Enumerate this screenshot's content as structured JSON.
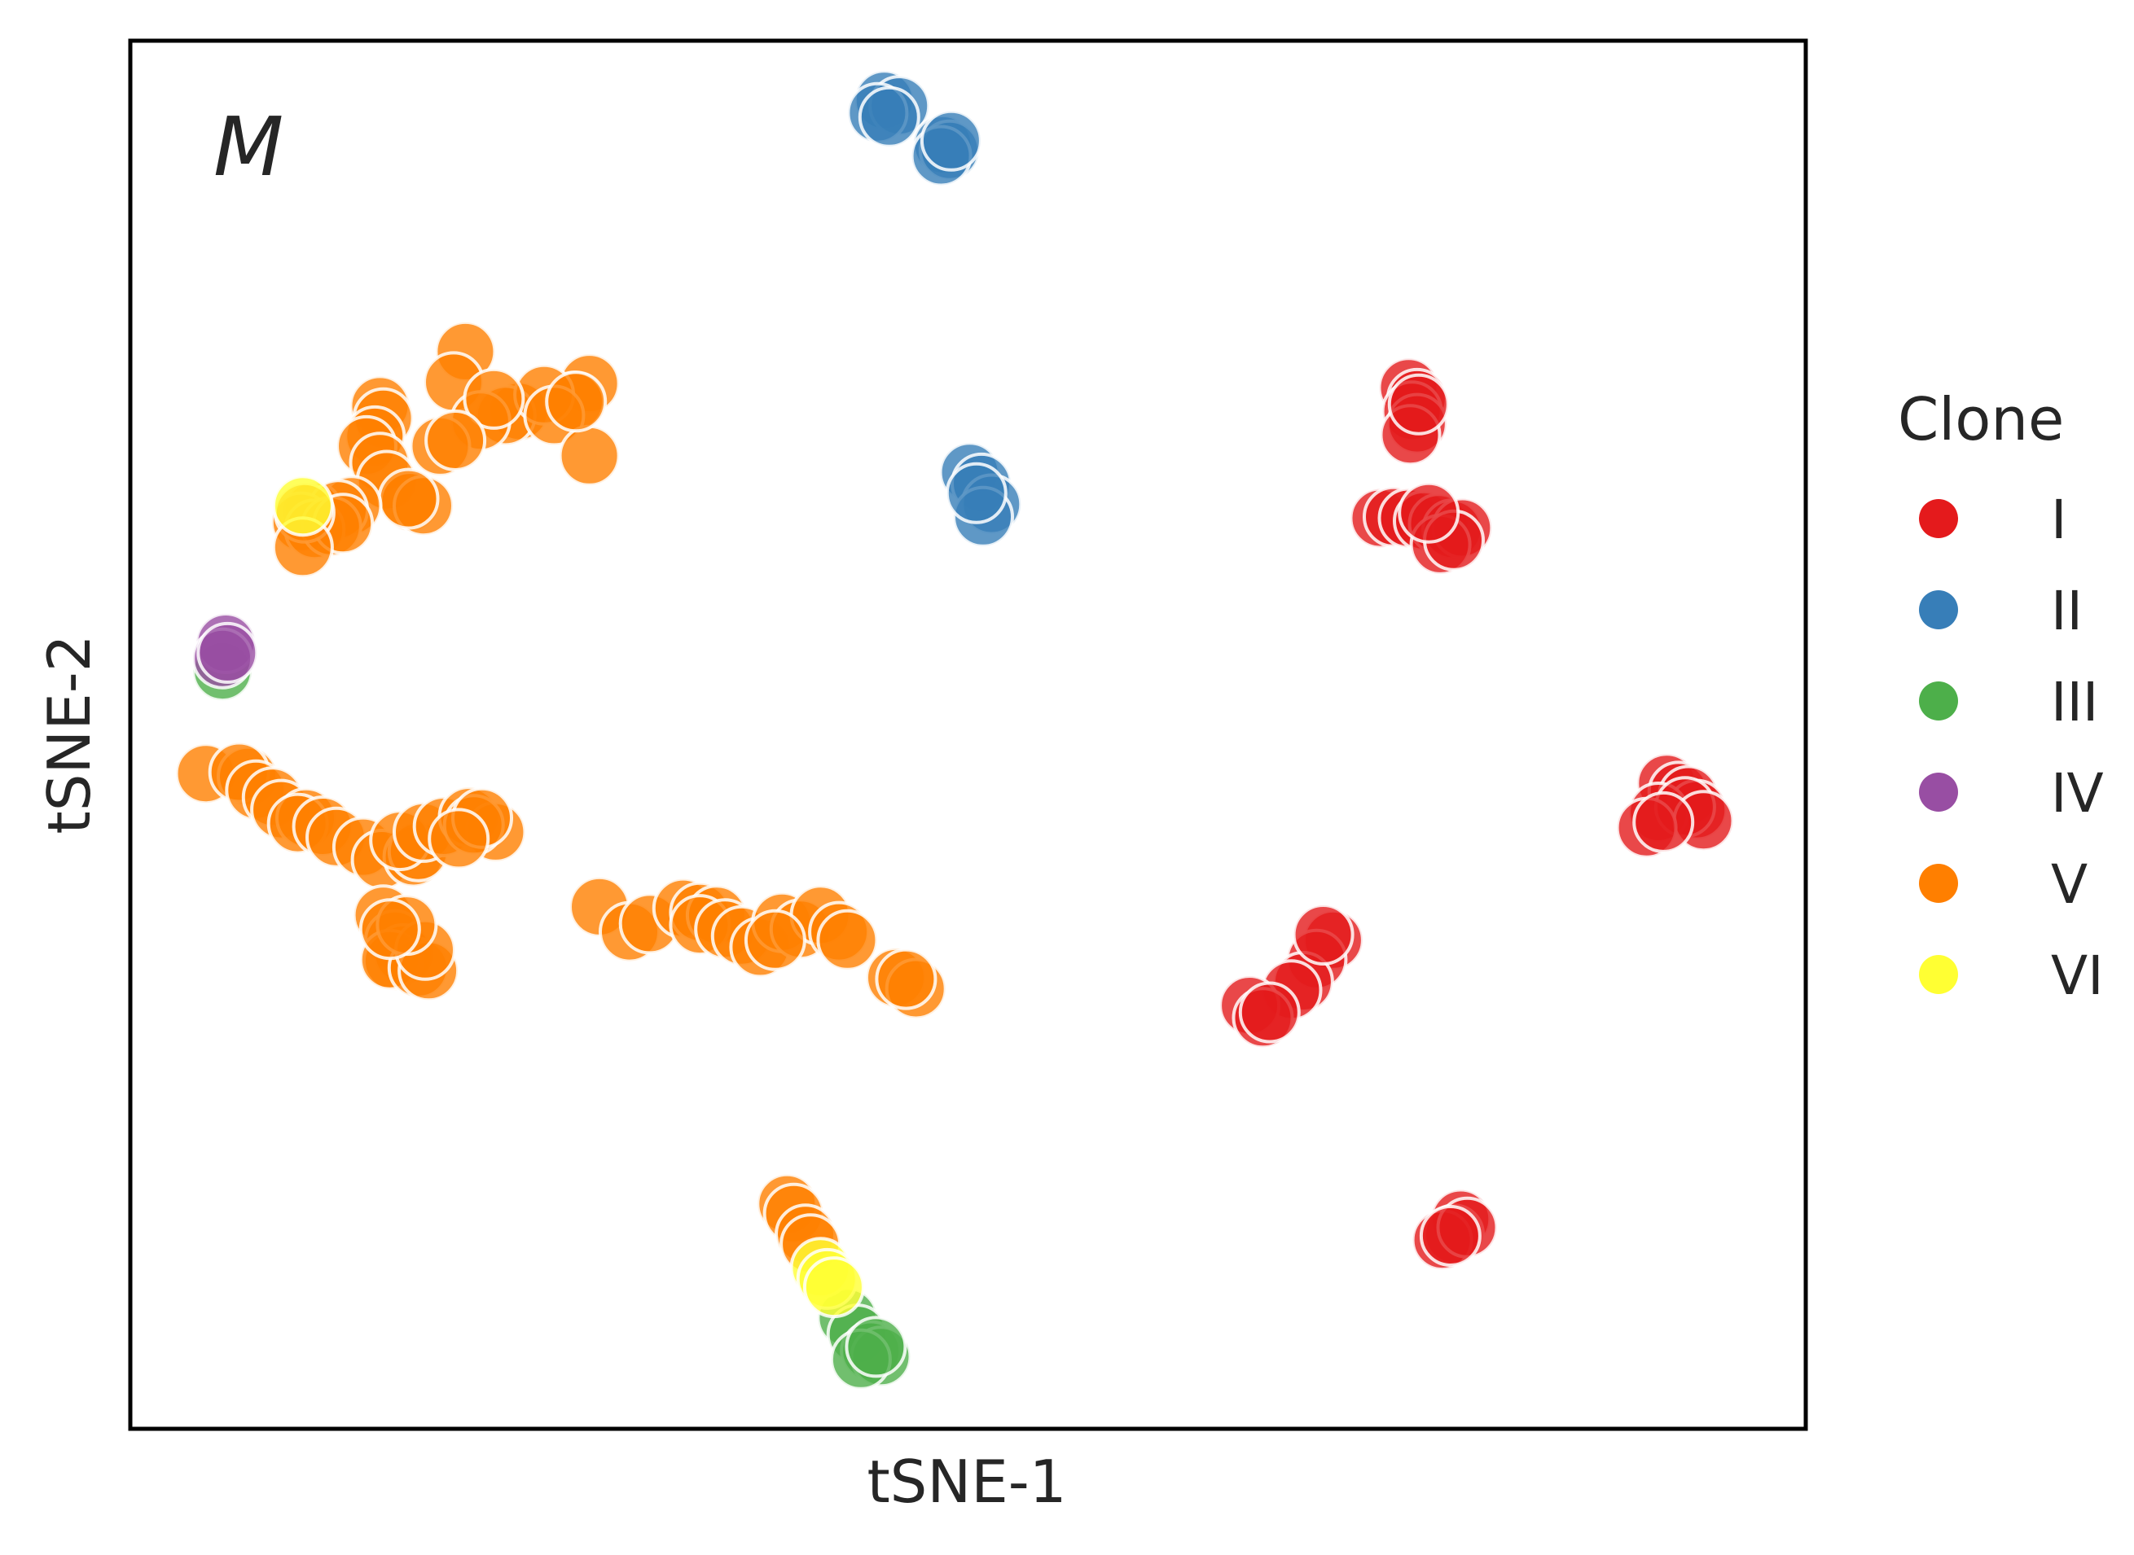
{
  "chart_data": {
    "type": "scatter",
    "panel_label": "M",
    "xlabel": "tSNE-1",
    "ylabel": "tSNE-2",
    "xlim": [
      0,
      100
    ],
    "ylim": [
      0,
      100
    ],
    "ticks_shown": false,
    "grid": false,
    "legend": {
      "title": "Clone",
      "placement": "right-outside"
    },
    "series": [
      {
        "name": "I",
        "color": "#e41a1c",
        "points": [
          [
            76.3,
            75.0
          ],
          [
            76.8,
            74.2
          ],
          [
            76.5,
            73.3
          ],
          [
            76.8,
            72.4
          ],
          [
            76.4,
            71.6
          ],
          [
            76.9,
            73.8
          ],
          [
            74.6,
            65.6
          ],
          [
            75.4,
            65.7
          ],
          [
            76.3,
            65.6
          ],
          [
            77.2,
            65.4
          ],
          [
            78.1,
            65.2
          ],
          [
            78.9,
            64.8
          ],
          [
            79.5,
            64.9
          ],
          [
            78.2,
            63.7
          ],
          [
            79.0,
            64.0
          ],
          [
            77.5,
            66.0
          ],
          [
            91.7,
            46.5
          ],
          [
            92.4,
            45.9
          ],
          [
            93.0,
            45.6
          ],
          [
            93.5,
            44.6
          ],
          [
            91.2,
            44.4
          ],
          [
            92.8,
            44.8
          ],
          [
            93.9,
            43.8
          ],
          [
            90.5,
            43.3
          ],
          [
            91.5,
            43.7
          ],
          [
            71.8,
            35.2
          ],
          [
            70.8,
            33.8
          ],
          [
            70.0,
            32.2
          ],
          [
            69.3,
            31.6
          ],
          [
            66.8,
            30.5
          ],
          [
            67.6,
            29.6
          ],
          [
            68.0,
            30.0
          ],
          [
            71.2,
            35.6
          ],
          [
            79.4,
            15.1
          ],
          [
            79.0,
            14.0
          ],
          [
            78.3,
            13.6
          ],
          [
            79.8,
            14.5
          ],
          [
            78.8,
            13.9
          ]
        ]
      },
      {
        "name": "II",
        "color": "#377eb8",
        "points": [
          [
            45.0,
            95.7
          ],
          [
            45.9,
            95.3
          ],
          [
            44.6,
            94.8
          ],
          [
            45.3,
            94.5
          ],
          [
            48.5,
            92.5
          ],
          [
            48.9,
            92.1
          ],
          [
            48.4,
            91.7
          ],
          [
            49.0,
            92.8
          ],
          [
            50.1,
            68.9
          ],
          [
            50.8,
            68.1
          ],
          [
            51.4,
            66.6
          ],
          [
            50.9,
            65.7
          ],
          [
            50.5,
            67.4
          ]
        ]
      },
      {
        "name": "III",
        "color": "#4daf4a",
        "points": [
          [
            5.5,
            54.6
          ],
          [
            42.8,
            8.0
          ],
          [
            43.4,
            6.8
          ],
          [
            44.2,
            5.6
          ],
          [
            44.8,
            5.2
          ],
          [
            43.6,
            5.0
          ],
          [
            44.5,
            5.9
          ]
        ]
      },
      {
        "name": "IV",
        "color": "#984ea3",
        "points": [
          [
            5.7,
            56.6
          ],
          [
            5.5,
            55.5
          ],
          [
            5.8,
            55.9
          ]
        ]
      },
      {
        "name": "V",
        "color": "#ff7f00",
        "points": [
          [
            20.0,
            77.6
          ],
          [
            19.3,
            75.4
          ],
          [
            27.4,
            75.3
          ],
          [
            23.2,
            73.3
          ],
          [
            22.4,
            73.0
          ],
          [
            26.5,
            74.0
          ],
          [
            24.7,
            74.5
          ],
          [
            20.9,
            72.6
          ],
          [
            21.7,
            74.2
          ],
          [
            25.3,
            73.0
          ],
          [
            27.4,
            70.1
          ],
          [
            26.6,
            74.0
          ],
          [
            18.5,
            70.8
          ],
          [
            19.4,
            71.2
          ],
          [
            14.9,
            73.7
          ],
          [
            15.1,
            72.8
          ],
          [
            14.6,
            71.5
          ],
          [
            14.1,
            70.8
          ],
          [
            14.9,
            69.6
          ],
          [
            15.3,
            68.3
          ],
          [
            16.7,
            66.8
          ],
          [
            17.5,
            66.5
          ],
          [
            16.6,
            67.0
          ],
          [
            13.2,
            66.5
          ],
          [
            10.9,
            66.1
          ],
          [
            12.4,
            66.2
          ],
          [
            10.2,
            65.3
          ],
          [
            11.0,
            64.8
          ],
          [
            12.0,
            65.0
          ],
          [
            12.7,
            65.2
          ],
          [
            10.4,
            66.0
          ],
          [
            10.3,
            63.5
          ],
          [
            4.5,
            47.2
          ],
          [
            7.0,
            47.0
          ],
          [
            6.5,
            47.3
          ],
          [
            7.5,
            46.0
          ],
          [
            8.5,
            45.5
          ],
          [
            9.0,
            44.6
          ],
          [
            10.5,
            44.0
          ],
          [
            10.0,
            43.6
          ],
          [
            11.5,
            43.4
          ],
          [
            12.3,
            42.6
          ],
          [
            13.9,
            41.9
          ],
          [
            15.0,
            41.0
          ],
          [
            16.9,
            41.2
          ],
          [
            17.2,
            41.6
          ],
          [
            16.1,
            42.4
          ],
          [
            17.5,
            43.0
          ],
          [
            18.7,
            43.4
          ],
          [
            20.2,
            44.1
          ],
          [
            21.8,
            43.0
          ],
          [
            20.5,
            43.5
          ],
          [
            21.0,
            44.0
          ],
          [
            19.6,
            42.5
          ],
          [
            15.1,
            37.0
          ],
          [
            15.8,
            35.2
          ],
          [
            16.3,
            34.2
          ],
          [
            15.7,
            33.7
          ],
          [
            15.5,
            33.8
          ],
          [
            17.2,
            33.2
          ],
          [
            17.8,
            33.0
          ],
          [
            17.6,
            34.5
          ],
          [
            16.5,
            36.3
          ],
          [
            15.5,
            36.0
          ],
          [
            28.0,
            37.6
          ],
          [
            29.8,
            35.8
          ],
          [
            31.0,
            36.4
          ],
          [
            33.0,
            37.5
          ],
          [
            34.0,
            37.2
          ],
          [
            35.0,
            37.0
          ],
          [
            34.0,
            36.3
          ],
          [
            35.5,
            36.0
          ],
          [
            36.5,
            35.5
          ],
          [
            37.6,
            34.7
          ],
          [
            38.9,
            36.5
          ],
          [
            40.0,
            36.0
          ],
          [
            41.2,
            37.0
          ],
          [
            42.3,
            35.8
          ],
          [
            42.8,
            35.2
          ],
          [
            38.5,
            35.2
          ],
          [
            45.7,
            32.5
          ],
          [
            46.9,
            31.7
          ],
          [
            46.3,
            32.4
          ],
          [
            39.2,
            16.2
          ],
          [
            39.6,
            15.5
          ],
          [
            40.3,
            14.0
          ],
          [
            40.6,
            13.3
          ]
        ]
      },
      {
        "name": "VI",
        "color": "#ffff33",
        "points": [
          [
            10.3,
            66.5
          ],
          [
            41.2,
            11.6
          ],
          [
            41.6,
            10.8
          ],
          [
            42.0,
            10.2
          ]
        ]
      }
    ]
  }
}
